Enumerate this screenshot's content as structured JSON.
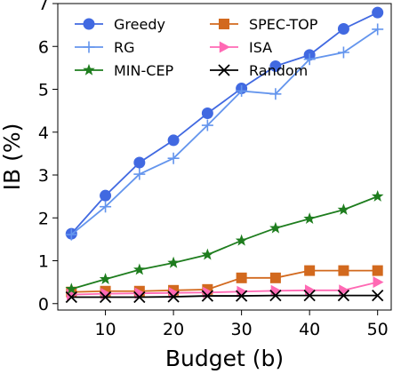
{
  "chart_data": {
    "type": "line",
    "title": "",
    "xlabel": "Budget (b)",
    "ylabel": "IB (%)",
    "xlim": [
      3,
      52
    ],
    "ylim": [
      -0.15,
      7.0
    ],
    "xticks": [
      10,
      20,
      30,
      40,
      50
    ],
    "yticks": [
      0,
      1,
      2,
      3,
      4,
      5,
      6,
      7
    ],
    "grid": false,
    "legend_position": "top-left",
    "x": [
      5,
      10,
      15,
      20,
      25,
      30,
      35,
      40,
      45,
      50
    ],
    "series": [
      {
        "name": "Greedy",
        "color": "#4169e1",
        "marker": "circle",
        "values": [
          1.63,
          2.52,
          3.29,
          3.81,
          4.44,
          5.02,
          5.54,
          5.8,
          6.41,
          6.79
        ]
      },
      {
        "name": "SPEC-TOP",
        "color": "#d2691e",
        "marker": "square",
        "values": [
          0.27,
          0.29,
          0.29,
          0.31,
          0.33,
          0.6,
          0.6,
          0.77,
          0.77,
          0.77
        ]
      },
      {
        "name": "RG",
        "color": "#6495ed",
        "marker": "plus",
        "values": [
          1.61,
          2.26,
          3.02,
          3.39,
          4.16,
          4.96,
          4.89,
          5.7,
          5.86,
          6.4
        ]
      },
      {
        "name": "ISA",
        "color": "#ff69b4",
        "marker": "triangle-right",
        "values": [
          0.21,
          0.23,
          0.24,
          0.25,
          0.26,
          0.28,
          0.3,
          0.31,
          0.31,
          0.5
        ]
      },
      {
        "name": "MIN-CEP",
        "color": "#1e7d1e",
        "marker": "star",
        "values": [
          0.34,
          0.57,
          0.79,
          0.95,
          1.14,
          1.47,
          1.76,
          1.98,
          2.19,
          2.5
        ]
      },
      {
        "name": "Random",
        "color": "#000000",
        "marker": "x",
        "values": [
          0.15,
          0.15,
          0.15,
          0.16,
          0.18,
          0.18,
          0.19,
          0.19,
          0.19,
          0.19
        ]
      }
    ]
  }
}
